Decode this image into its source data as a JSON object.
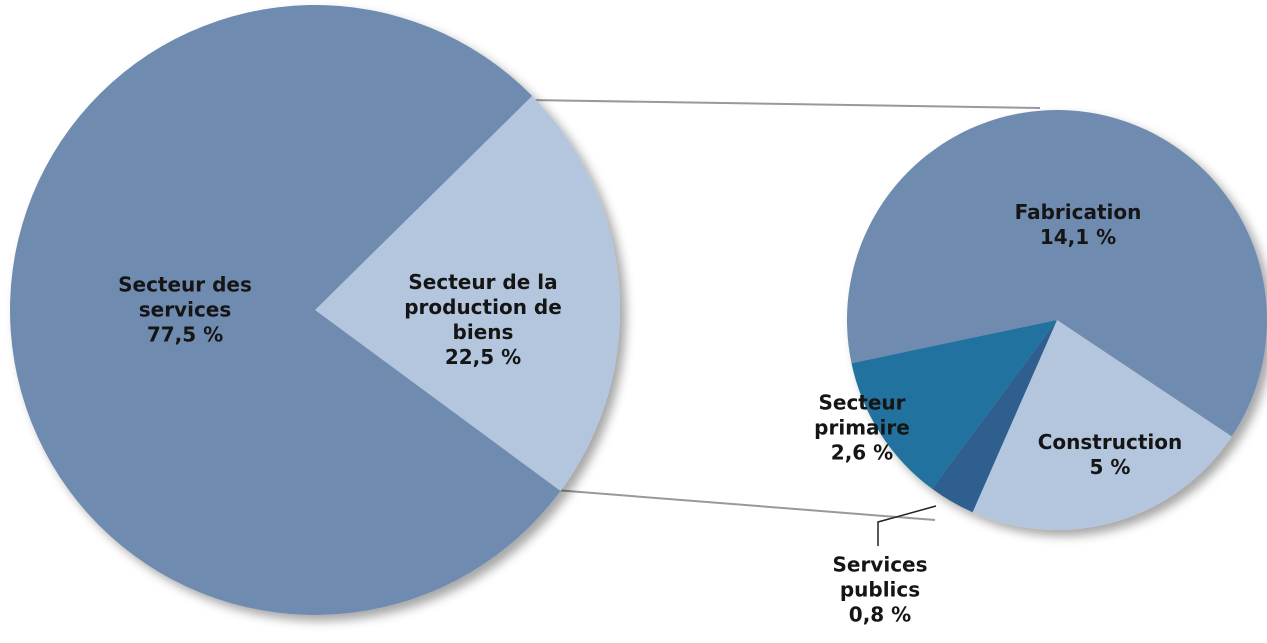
{
  "chart_data": {
    "type": "pie",
    "pies": [
      {
        "categories": [
          "Secteur des services",
          "Secteur de la production de biens"
        ],
        "values": [
          77.5,
          22.5
        ],
        "value_labels": [
          "77,5 %",
          "22,5 %"
        ],
        "colors": [
          "#6f8bb0",
          "#b3c6dd"
        ]
      },
      {
        "categories": [
          "Fabrication",
          "Construction",
          "Services publics",
          "Secteur primaire"
        ],
        "values": [
          14.1,
          5,
          0.8,
          2.6
        ],
        "value_labels": [
          "14,1 %",
          "5 %",
          "0,8 %",
          "2,6 %"
        ],
        "colors": [
          "#6f8bb0",
          "#b3c6dd",
          "#2f5f8f",
          "#2472a0"
        ]
      }
    ]
  }
}
